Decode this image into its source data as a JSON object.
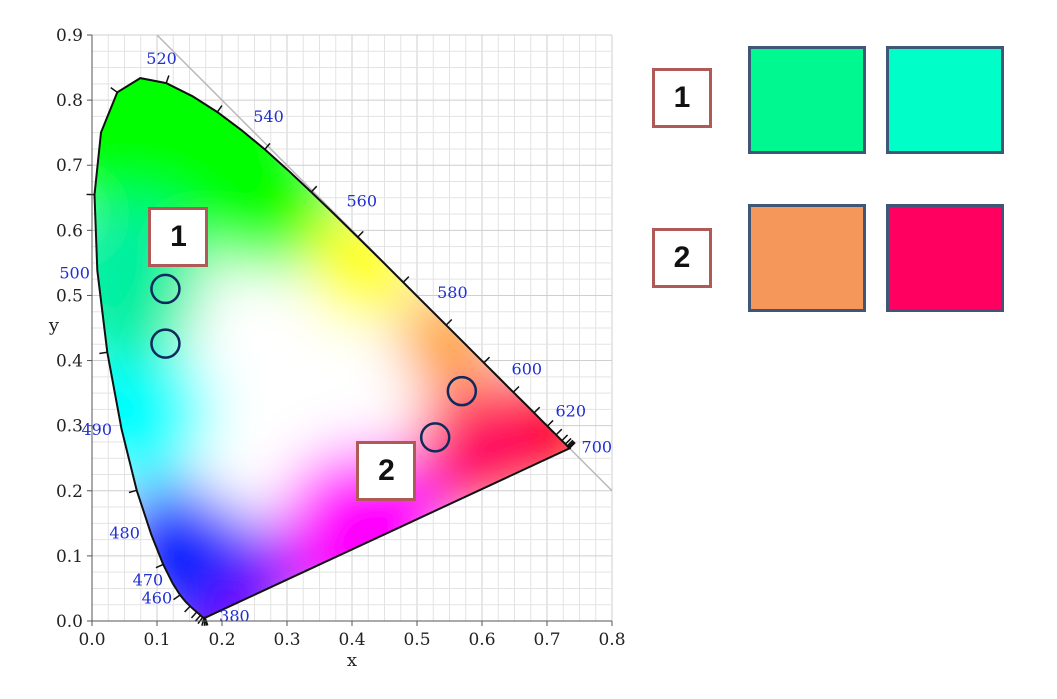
{
  "diagram": {
    "x_axis_label": "x",
    "y_axis_label": "y",
    "x_ticks": [
      "0.0",
      "0.1",
      "0.2",
      "0.3",
      "0.4",
      "0.5",
      "0.6",
      "0.7",
      "0.8"
    ],
    "y_ticks": [
      "0.0",
      "0.1",
      "0.2",
      "0.3",
      "0.4",
      "0.5",
      "0.6",
      "0.7",
      "0.8",
      "0.9"
    ],
    "wavelength_labels": [
      {
        "text": "380",
        "x": 0.1741,
        "y": 0.005
      },
      {
        "text": "460",
        "x": 0.144,
        "y": 0.0297
      },
      {
        "text": "470",
        "x": 0.1241,
        "y": 0.0578
      },
      {
        "text": "480",
        "x": 0.0913,
        "y": 0.1327
      },
      {
        "text": "490",
        "x": 0.0454,
        "y": 0.295
      },
      {
        "text": "500",
        "x": 0.0082,
        "y": 0.5384
      },
      {
        "text": "520",
        "x": 0.0743,
        "y": 0.8338
      },
      {
        "text": "540",
        "x": 0.2296,
        "y": 0.7543
      },
      {
        "text": "560",
        "x": 0.3731,
        "y": 0.6245
      },
      {
        "text": "580",
        "x": 0.5125,
        "y": 0.4866
      },
      {
        "text": "600",
        "x": 0.627,
        "y": 0.3725
      },
      {
        "text": "620",
        "x": 0.6915,
        "y": 0.3083
      },
      {
        "text": "700",
        "x": 0.7347,
        "y": 0.2653
      }
    ],
    "colors": {
      "red": "#ff0000",
      "yellow": "#ffff00",
      "green": "#00ff00",
      "cyan": "#00ffff",
      "blue": "#0020ff",
      "magenta": "#ff00ff",
      "white": "#ffffff",
      "wavelength_label": "#1f2fd0",
      "marker_circle": "#0d2a5c"
    },
    "marked_points": [
      {
        "x": 0.113,
        "y": 0.51
      },
      {
        "x": 0.113,
        "y": 0.426
      },
      {
        "x": 0.569,
        "y": 0.353
      },
      {
        "x": 0.528,
        "y": 0.282
      }
    ],
    "region_markers": [
      {
        "label": "1",
        "x": 0.133,
        "y": 0.59
      },
      {
        "label": "2",
        "x": 0.453,
        "y": 0.23
      }
    ]
  },
  "legend": {
    "rows": [
      {
        "label": "1",
        "swatches": [
          "#00f890",
          "#00ffc8"
        ]
      },
      {
        "label": "2",
        "swatches": [
          "#f5965a",
          "#ff0060"
        ]
      }
    ],
    "border_color": "#3e5677",
    "label_border_color": "#b05a57"
  }
}
